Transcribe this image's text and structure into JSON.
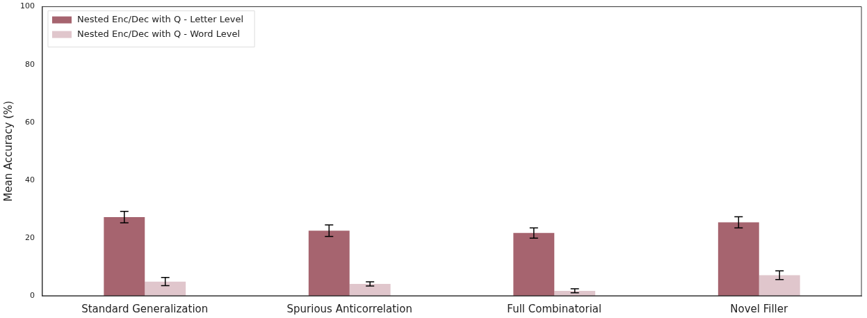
{
  "chart_data": {
    "type": "bar",
    "ylabel": "Mean Accuracy (%)",
    "categories": [
      "Standard Generalization",
      "Spurious Anticorrelation",
      "Full Combinatorial",
      "Novel Filler"
    ],
    "series": [
      {
        "name": "Nested Enc/Dec with Q - Letter Level",
        "color": "#a6646f",
        "values": [
          27.2,
          22.5,
          21.7,
          25.4
        ],
        "errors": [
          2,
          2,
          1.8,
          1.9
        ]
      },
      {
        "name": "Nested Enc/Dec with Q - Word Level",
        "color": "#e0c6cc",
        "values": [
          4.9,
          4.1,
          1.7,
          7.1
        ],
        "errors": [
          1.4,
          0.7,
          0.7,
          1.5
        ]
      }
    ],
    "ylim": [
      0,
      100
    ],
    "yticks": [
      0,
      20,
      40,
      60,
      80,
      100
    ],
    "grid": false,
    "legend": "top left"
  }
}
